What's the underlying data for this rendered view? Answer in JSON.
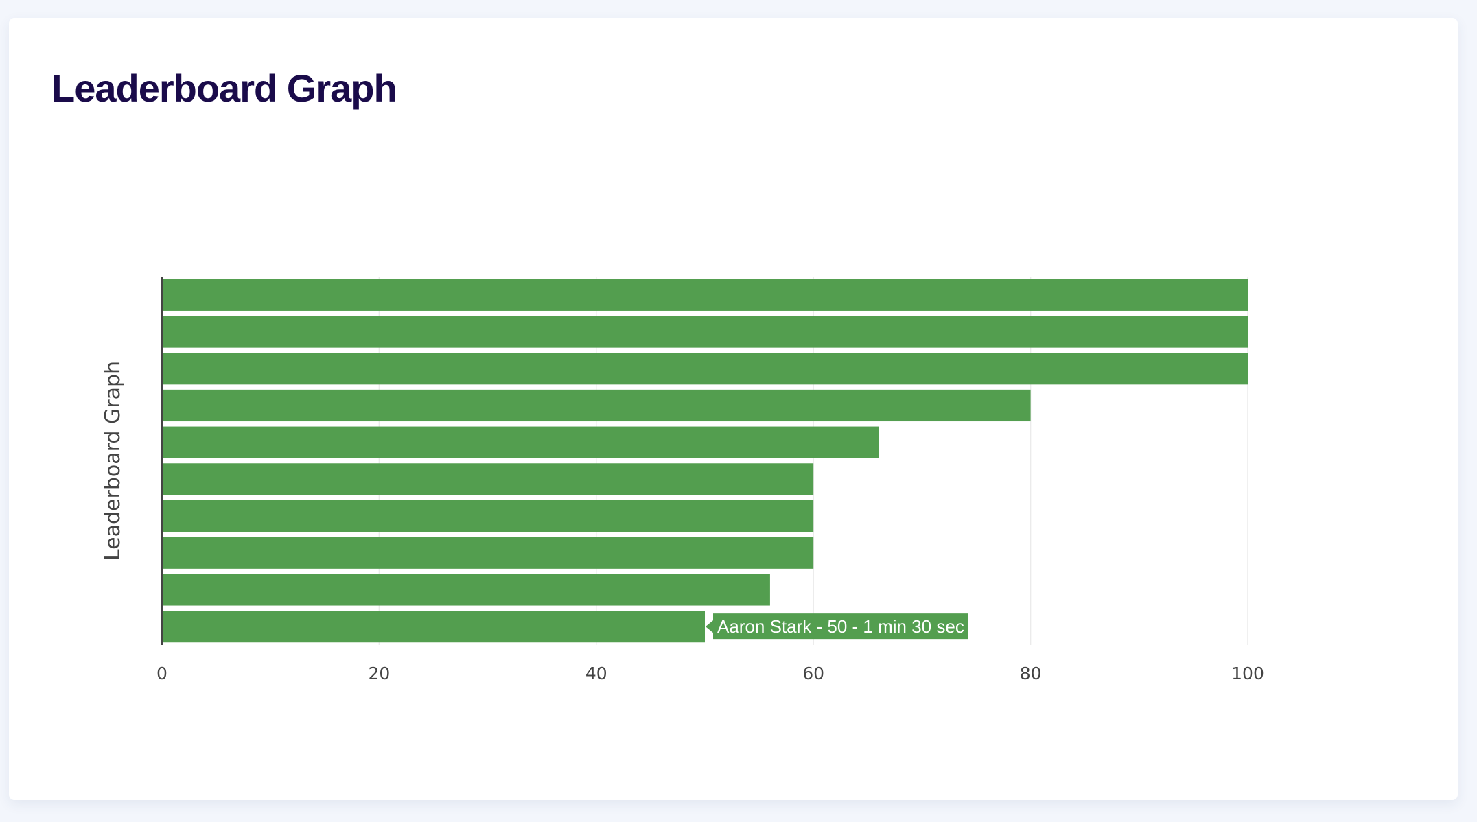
{
  "page": {
    "title": "Leaderboard Graph"
  },
  "colors": {
    "bar": "#539e4f",
    "grid": "#ebebeb",
    "axis": "#444444",
    "title": "#1a0b4a",
    "tooltip_bg": "#539e4f",
    "tooltip_text": "#ffffff"
  },
  "chart_data": {
    "type": "bar",
    "orientation": "horizontal",
    "title": "",
    "xlabel": "",
    "ylabel": "Leaderboard Graph",
    "xlim": [
      0,
      100
    ],
    "xticks": [
      0,
      20,
      40,
      60,
      80,
      100
    ],
    "grid": true,
    "values": [
      100,
      100,
      100,
      80,
      66,
      60,
      60,
      60,
      56,
      50
    ],
    "tooltip": {
      "bar_index": 9,
      "text": "Aaron Stark - 50 -  1 min 30 sec"
    }
  }
}
